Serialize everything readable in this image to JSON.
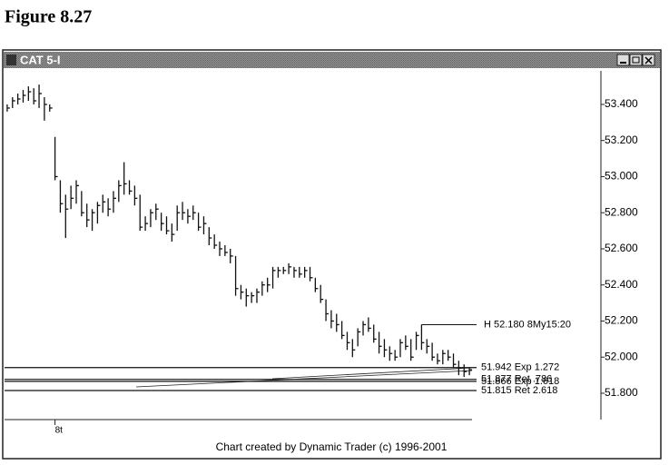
{
  "figure_title": "Figure 8.27",
  "window": {
    "title": "CAT 5-I"
  },
  "footer": "Chart created by Dynamic Trader (c) 1996-2001",
  "chart_data": {
    "type": "hlc",
    "categories": [
      null,
      null,
      null,
      null,
      null,
      null,
      null,
      null,
      null,
      "8t",
      null,
      null,
      null,
      null,
      null,
      null,
      null,
      null,
      null,
      null,
      null,
      null,
      null,
      null,
      null,
      null,
      null,
      null,
      null,
      null,
      null,
      null,
      null,
      null,
      null,
      null,
      null,
      null,
      null,
      null,
      null,
      null,
      null,
      null,
      null,
      null,
      null,
      null,
      null,
      null,
      null,
      null,
      null,
      null,
      null,
      null,
      null,
      null,
      null,
      null,
      null,
      null,
      null,
      null,
      null,
      null,
      null,
      null,
      null,
      null,
      null,
      null,
      null,
      null,
      null,
      null,
      null,
      null,
      null,
      null,
      null,
      null,
      null,
      null,
      null,
      null,
      null,
      null
    ],
    "high": [
      53.4,
      53.44,
      53.46,
      53.48,
      53.5,
      53.49,
      53.51,
      53.44,
      53.4,
      53.22,
      52.98,
      52.9,
      52.95,
      52.98,
      52.92,
      52.85,
      52.82,
      52.86,
      52.9,
      52.88,
      52.92,
      52.98,
      53.08,
      52.98,
      52.95,
      52.9,
      52.78,
      52.82,
      52.85,
      52.8,
      52.78,
      52.74,
      52.84,
      52.86,
      52.82,
      52.84,
      52.8,
      52.78,
      52.72,
      52.68,
      52.64,
      52.62,
      52.6,
      52.56,
      52.4,
      52.38,
      52.36,
      52.38,
      52.42,
      52.44,
      52.5,
      52.5,
      52.5,
      52.52,
      52.5,
      52.5,
      52.5,
      52.5,
      52.44,
      52.4,
      52.32,
      52.26,
      52.24,
      52.2,
      52.14,
      52.1,
      52.16,
      52.2,
      52.22,
      52.18,
      52.14,
      52.1,
      52.06,
      52.04,
      52.1,
      52.12,
      52.1,
      52.14,
      52.18,
      52.1,
      52.08,
      52.02,
      52.04,
      52.04,
      52.02,
      51.98,
      51.96,
      51.94
    ],
    "low": [
      53.36,
      53.38,
      53.4,
      53.41,
      53.42,
      53.4,
      53.38,
      53.31,
      53.36,
      52.98,
      52.8,
      52.66,
      52.82,
      52.85,
      52.78,
      52.72,
      52.7,
      52.74,
      52.8,
      52.78,
      52.8,
      52.86,
      52.9,
      52.9,
      52.84,
      52.7,
      52.7,
      52.72,
      52.76,
      52.7,
      52.68,
      52.64,
      52.7,
      52.76,
      52.74,
      52.76,
      52.7,
      52.68,
      52.62,
      52.6,
      52.56,
      52.56,
      52.52,
      52.34,
      52.32,
      52.28,
      52.3,
      52.3,
      52.34,
      52.36,
      52.38,
      52.44,
      52.46,
      52.46,
      52.44,
      52.44,
      52.44,
      52.42,
      52.36,
      52.3,
      52.2,
      52.16,
      52.14,
      52.1,
      52.04,
      52.0,
      52.06,
      52.12,
      52.14,
      52.08,
      52.02,
      52.0,
      51.98,
      51.98,
      52.0,
      52.04,
      51.98,
      52.04,
      52.04,
      52.02,
      51.98,
      51.96,
      51.96,
      51.98,
      51.94,
      51.9,
      51.89,
      51.9
    ],
    "close": [
      53.38,
      53.42,
      53.43,
      53.45,
      53.47,
      53.42,
      53.46,
      53.4,
      53.38,
      53.0,
      52.85,
      52.82,
      52.88,
      52.95,
      52.8,
      52.76,
      52.8,
      52.84,
      52.86,
      52.82,
      52.88,
      52.95,
      52.96,
      52.92,
      52.88,
      52.72,
      52.74,
      52.8,
      52.82,
      52.74,
      52.7,
      52.68,
      52.8,
      52.8,
      52.78,
      52.8,
      52.72,
      52.74,
      52.66,
      52.62,
      52.6,
      52.58,
      52.56,
      52.38,
      52.36,
      52.34,
      52.34,
      52.36,
      52.4,
      52.4,
      52.48,
      52.48,
      52.48,
      52.5,
      52.48,
      52.46,
      52.48,
      52.44,
      52.38,
      52.32,
      52.24,
      52.2,
      52.18,
      52.12,
      52.08,
      52.04,
      52.14,
      52.18,
      52.16,
      52.1,
      52.06,
      52.04,
      52.02,
      52.0,
      52.08,
      52.06,
      52.0,
      52.12,
      52.08,
      52.06,
      52.0,
      51.98,
      52.02,
      52.0,
      51.96,
      51.94,
      51.92,
      51.93
    ],
    "color": "#111111",
    "ylim": [
      51.654,
      53.586
    ],
    "yticks": [
      {
        "value": 51.8,
        "label": "51.800"
      },
      {
        "value": 52.0,
        "label": "52.000"
      },
      {
        "value": 52.2,
        "label": "52.200"
      },
      {
        "value": 52.4,
        "label": "52.400"
      },
      {
        "value": 52.6,
        "label": "52.600"
      },
      {
        "value": 52.8,
        "label": "52.800"
      },
      {
        "value": 53.0,
        "label": "53.000"
      },
      {
        "value": 53.2,
        "label": "53.200"
      },
      {
        "value": 53.4,
        "label": "53.400"
      }
    ],
    "high_annotation": {
      "value": 52.18,
      "label": "H 52.180 8My15:20"
    },
    "levels": [
      {
        "value": 51.942,
        "label": "51.942 Exp 1.272"
      },
      {
        "value": 51.877,
        "label": "51.877 Ret .786"
      },
      {
        "value": 51.866,
        "label": "51.866 Exp 1.618"
      },
      {
        "value": 51.815,
        "label": "51.815 Ret 2.618"
      }
    ]
  }
}
